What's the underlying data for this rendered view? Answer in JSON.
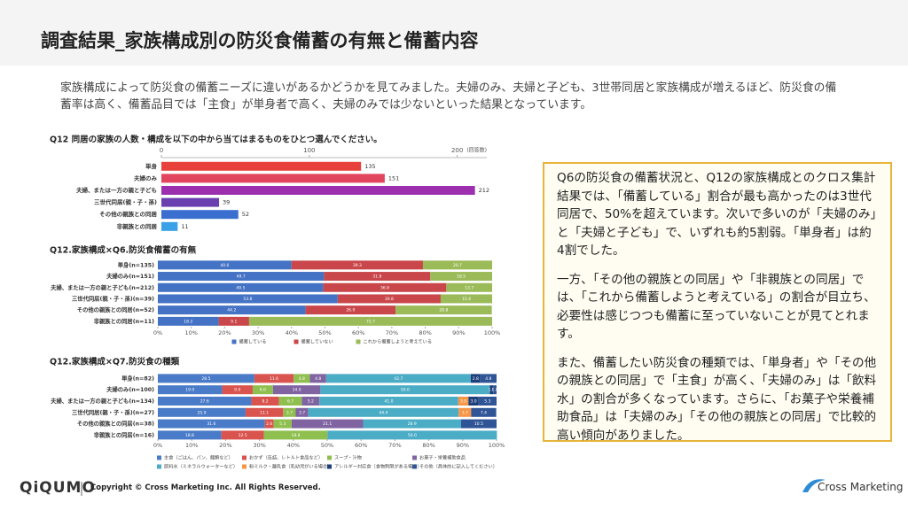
{
  "title": "調査結果_家族構成別の防災食備蓄の有無と備蓄内容",
  "intro": "家族構成によって防災食の備蓄ニーズに違いがあるかどうかを見てみました。夫婦のみ、夫婦と子ども、3世帯同居と家族構成が増えるほど、防災食の備蓄率は高く、備蓄品目では「主食」が単身者で高く、夫婦のみでは少ないといった結果となっています。",
  "note": [
    "Q6の防災食の備蓄状況と、Q12の家族構成とのクロス集計結果では、「備蓄している」割合が最も高かったのは3世代同居で、50%を超えています。次いで多いのが「夫婦のみ」と「夫婦と子ども」で、いずれも約5割弱。「単身者」は約4割でした。",
    "一方、「その他の親族との同居」や「非親族との同居」では、「これから備蓄しようと考えている」の割合が目立ち、必要性は感じつつも備蓄に至っていないことが見てとれます。",
    "また、備蓄したい防災食の種類では、「単身者」や「その他の親族との同居」で「主食」が高く、「夫婦のみ」は「飲料水」の割合が多くなっています。さらに、「お菓子や栄養補助食品」は「夫婦のみ」「その他の親族との同居」で比較的高い傾向がありました。"
  ],
  "footer": {
    "brand": "QiQUMO",
    "copyright": "Copyright © Cross Marketing Inc. All Rights Reserved.",
    "company": "Cross Marketing"
  },
  "chart_data": [
    {
      "type": "bar",
      "title": "Q12 同居の家族の人数・構成を以下の中から当てはまるものをひとつ選んでください。",
      "unit_label": "(回答数)",
      "categories": [
        "単身",
        "夫婦のみ",
        "夫婦、または一方の親と子ども",
        "三世代同居(親・子・孫)",
        "その他の親族との同居",
        "非親族との同居"
      ],
      "values": [
        135,
        151,
        212,
        39,
        52,
        11
      ],
      "colors": [
        "#e8413c",
        "#e2455e",
        "#9b2fae",
        "#6a3fb0",
        "#3a6fd0",
        "#3aa0e8"
      ],
      "xlim": [
        0,
        220
      ],
      "xticks": [
        0,
        100,
        200
      ]
    },
    {
      "type": "stacked_bar",
      "title": "Q12.家族構成×Q6.防災食備蓄の有無",
      "categories": [
        "単身(n=135)",
        "夫婦のみ(n=151)",
        "夫婦、または一方の親と子ども(n=212)",
        "三世代同居(親・子・孫)(n=39)",
        "その他の親族との同居(n=52)",
        "非親族との同居(n=11)"
      ],
      "series": [
        {
          "name": "備蓄している",
          "color": "#4472c4",
          "values": [
            40,
            49.7,
            49.5,
            53.8,
            44.2,
            18.2
          ],
          "value_labels": [
            "40.0",
            "49.7",
            "49.5",
            "53.8",
            "44.2",
            "18.2"
          ]
        },
        {
          "name": "備蓄していない",
          "color": "#c9474a",
          "values": [
            39.3,
            31.8,
            36.8,
            30.8,
            26.9,
            9.1
          ],
          "value_labels": [
            "39.3",
            "31.8",
            "36.8",
            "30.8",
            "26.9",
            "9.1"
          ]
        },
        {
          "name": "これから備蓄しようと考えている",
          "color": "#9bbb59",
          "values": [
            20.7,
            18.5,
            13.7,
            15.4,
            28.8,
            72.7
          ],
          "value_labels": [
            "20.7",
            "18.5",
            "13.7",
            "15.4",
            "28.8",
            "72.7"
          ]
        }
      ],
      "xlim": [
        0,
        100
      ],
      "xticks": [
        {
          "value": 0,
          "label": "0%"
        },
        {
          "value": 10,
          "label": "10%"
        },
        {
          "value": 20,
          "label": "20%"
        },
        {
          "value": 30,
          "label": "30%"
        },
        {
          "value": 40,
          "label": "40%"
        },
        {
          "value": 50,
          "label": "50%"
        },
        {
          "value": 60,
          "label": "60%"
        },
        {
          "value": 70,
          "label": "70%"
        },
        {
          "value": 80,
          "label": "80%"
        },
        {
          "value": 90,
          "label": "90%"
        },
        {
          "value": 100,
          "label": "100%"
        }
      ]
    },
    {
      "type": "stacked_bar",
      "title": "Q12.家族構成×Q7.防災食の種類",
      "categories": [
        "単身(n=82)",
        "夫婦のみ(n=100)",
        "夫婦、または一方の親と子ども(n=134)",
        "三世代同居(親・子・孫)(n=27)",
        "その他の親族との同居(n=38)",
        "非親族との同居(n=16)"
      ],
      "series": [
        {
          "name": "主食（ごはん、パン、麺類など）",
          "color": "#4a7bc8",
          "values": [
            28.5,
            19,
            27.6,
            25.9,
            31.6,
            18.8
          ],
          "value_labels": [
            "28.5",
            "19.0",
            "27.6",
            "25.9",
            "31.6",
            "18.8"
          ]
        },
        {
          "name": "おかず（缶詰、レトルト食品など）",
          "color": "#d9534f",
          "values": [
            11.6,
            9,
            8.2,
            11.1,
            2.6,
            12.5
          ],
          "value_labels": [
            "11.6",
            "9.0",
            "8.2",
            "11.1",
            "2.6",
            "12.5"
          ]
        },
        {
          "name": "スープ・汁物",
          "color": "#8fbf4f",
          "values": [
            4.8,
            6,
            6.7,
            3.7,
            5.3,
            18.8
          ],
          "value_labels": [
            "4.8",
            "6.0",
            "6.7",
            "3.7",
            "5.3",
            "18.8"
          ]
        },
        {
          "name": "お菓子・栄養補助食品",
          "color": "#8064a2",
          "values": [
            4.8,
            14,
            5.2,
            3.7,
            21.1,
            0
          ],
          "value_labels": [
            "4.8",
            "14.0",
            "5.2",
            "3.7",
            "21.1",
            null
          ]
        },
        {
          "name": "飲料水（ミネラルウォーターなど）",
          "color": "#4bacc6",
          "values": [
            42.7,
            50,
            41,
            44.4,
            28.9,
            50
          ],
          "value_labels": [
            "42.7",
            "50.0",
            "41.0",
            "44.4",
            "28.9",
            "50.0"
          ]
        },
        {
          "name": "粉ミルク・離乳食（乳幼児がいる場合）",
          "color": "#f79646",
          "values": [
            0,
            0,
            3,
            3.7,
            0,
            0
          ],
          "value_labels": [
            null,
            null,
            "3.0",
            "3.7",
            null,
            null
          ]
        },
        {
          "name": "アレルギー対応食（食物制限がある場合）",
          "color": "#1f3f7a",
          "values": [
            2.8,
            1,
            3,
            0,
            0,
            0
          ],
          "value_labels": [
            "2.8",
            "1.0",
            "3.0",
            null,
            null,
            null
          ]
        },
        {
          "name": "その他（具体的に記入してください）",
          "color": "#2f5597",
          "values": [
            4.8,
            1,
            5.3,
            7.4,
            10.5,
            0
          ],
          "value_labels": [
            "4.8",
            "1.0",
            "5.3",
            "7.4",
            "10.5",
            null
          ]
        }
      ],
      "xlim": [
        0,
        100
      ],
      "xticks": [
        {
          "value": 0,
          "label": "0%"
        },
        {
          "value": 10,
          "label": "10%"
        },
        {
          "value": 20,
          "label": "20%"
        },
        {
          "value": 30,
          "label": "30%"
        },
        {
          "value": 40,
          "label": "40%"
        },
        {
          "value": 50,
          "label": "50%"
        },
        {
          "value": 60,
          "label": "60%"
        },
        {
          "value": 70,
          "label": "70%"
        },
        {
          "value": 80,
          "label": "80%"
        },
        {
          "value": 90,
          "label": "90%"
        },
        {
          "value": 100,
          "label": "100%"
        }
      ]
    }
  ]
}
